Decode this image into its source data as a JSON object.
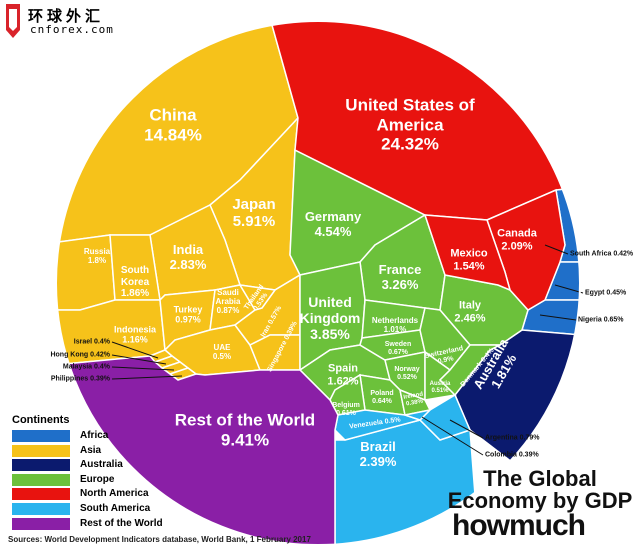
{
  "logo": {
    "name": "环球外汇",
    "url": "cnforex.com"
  },
  "chart_data": {
    "type": "voronoi-treemap",
    "title": "The Global Economy by GDP",
    "legend_title": "Continents",
    "source": "Sources: World Development Indicators database, World Bank, 1 February 2017",
    "brand": "howmuch",
    "series": [
      {
        "name": "Africa",
        "color": "#1f6fc9",
        "categories": [
          "South Africa",
          "Egypt",
          "Nigeria"
        ],
        "values": [
          0.42,
          0.45,
          0.65
        ],
        "value_labels": [
          "0.42%",
          "0.45%",
          "0.65%"
        ]
      },
      {
        "name": "Asia",
        "color": "#f6c21a",
        "categories": [
          "China",
          "Japan",
          "India",
          "Russia",
          "South Korea",
          "Indonesia",
          "Turkey",
          "Saudi Arabia",
          "UAE",
          "Iran",
          "Thailand",
          "Singapore",
          "Israel",
          "Hong Kong",
          "Malaysia",
          "Philippines"
        ],
        "values": [
          14.84,
          5.91,
          2.83,
          1.8,
          1.86,
          1.16,
          0.97,
          0.87,
          0.5,
          0.57,
          0.53,
          0.39,
          0.4,
          0.42,
          0.4,
          0.39
        ],
        "value_labels": [
          "14.84%",
          "5.91%",
          "2.83%",
          "1.8%",
          "1.86%",
          "1.16%",
          "0.97%",
          "0.87%",
          "0.5%",
          "0.57%",
          "0.53%",
          "0.39%",
          "0.4%",
          "0.42%",
          "0.4%",
          "0.39%"
        ]
      },
      {
        "name": "Australia",
        "color": "#0b1a6e",
        "categories": [
          "Australia"
        ],
        "values": [
          1.81
        ],
        "value_labels": [
          "1.81%"
        ]
      },
      {
        "name": "Europe",
        "color": "#6cc13b",
        "categories": [
          "Germany",
          "France",
          "United Kingdom",
          "Italy",
          "Spain",
          "Netherlands",
          "Sweden",
          "Switzerland",
          "Norway",
          "Poland",
          "Belgium",
          "Austria",
          "Denmark",
          "Ireland"
        ],
        "values": [
          4.54,
          3.26,
          3.85,
          2.46,
          1.62,
          1.01,
          0.67,
          0.9,
          0.52,
          0.64,
          0.61,
          0.51,
          0.4,
          0.38
        ],
        "value_labels": [
          "4.54%",
          "3.26%",
          "3.85%",
          "2.46%",
          "1.62%",
          "1.01%",
          "0.67%",
          "0.9%",
          "0.52%",
          "0.64%",
          "0.61%",
          "0.51%",
          "0.4%",
          "0.38%"
        ]
      },
      {
        "name": "North America",
        "color": "#e8130f",
        "categories": [
          "United States of America",
          "Canada",
          "Mexico"
        ],
        "values": [
          24.32,
          2.09,
          1.54
        ],
        "value_labels": [
          "24.32%",
          "2.09%",
          "1.54%"
        ]
      },
      {
        "name": "South America",
        "color": "#2ab4ee",
        "categories": [
          "Brazil",
          "Venezuela",
          "Argentina",
          "Colombia"
        ],
        "values": [
          2.39,
          0.5,
          0.79,
          0.39
        ],
        "value_labels": [
          "2.39%",
          "0.5%",
          "0.79%",
          "0.39%"
        ]
      },
      {
        "name": "Rest of the World",
        "color": "#8a1fa6",
        "categories": [
          "Rest of the World"
        ],
        "values": [
          9.41
        ],
        "value_labels": [
          "9.41%"
        ]
      }
    ]
  }
}
